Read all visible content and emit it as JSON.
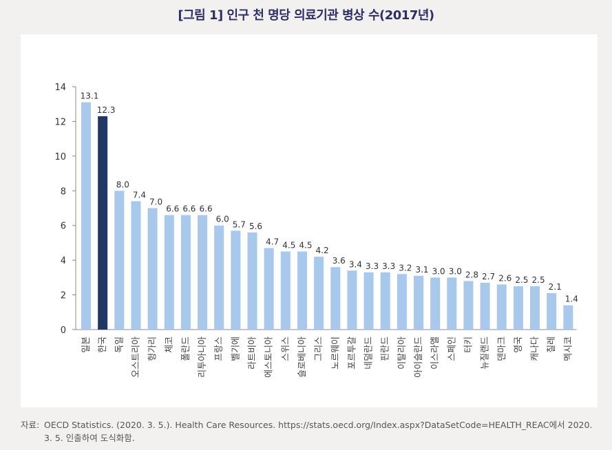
{
  "title": "[그림 1] 인구 천 명당 의료기관 병상 수(2017년)",
  "source": {
    "label": "자료:",
    "text": "OECD Statistics. (2020. 3. 5.). Health Care Resources. https://stats.oecd.org/Index.aspx?DataSetCode=HEALTH_REAC에서 2020. 3. 5. 인출하여 도식화함."
  },
  "colors": {
    "bar": "#a8c8ec",
    "highlight": "#1f3864",
    "axis": "#888888"
  },
  "chart_data": {
    "type": "bar",
    "title": "",
    "xlabel": "",
    "ylabel": "",
    "ylim": [
      0,
      14
    ],
    "yticks": [
      0,
      2,
      4,
      6,
      8,
      10,
      12,
      14
    ],
    "highlight_category": "한국",
    "categories": [
      "일본",
      "한국",
      "독일",
      "오스트리아",
      "헝가리",
      "체코",
      "폴란드",
      "리투아니아",
      "프랑스",
      "벨기에",
      "라트비아",
      "에스토니아",
      "스위스",
      "슬로베니아",
      "그리스",
      "노르웨이",
      "포르투갈",
      "네덜란드",
      "핀란드",
      "이탈리아",
      "아이슬란드",
      "이스라엘",
      "스페인",
      "터키",
      "뉴질랜드",
      "덴마크",
      "영국",
      "캐나다",
      "칠레",
      "멕시코"
    ],
    "values": [
      13.1,
      12.3,
      8.0,
      7.4,
      7.0,
      6.6,
      6.6,
      6.6,
      6.0,
      5.7,
      5.6,
      4.7,
      4.5,
      4.5,
      4.2,
      3.6,
      3.4,
      3.3,
      3.3,
      3.2,
      3.1,
      3.0,
      3.0,
      2.8,
      2.7,
      2.6,
      2.5,
      2.5,
      2.1,
      1.4
    ],
    "value_labels": [
      "13.1",
      "12.3",
      "8.0",
      "7.4",
      "7.0",
      "6.6",
      "6.6",
      "6.6",
      "6.0",
      "5.7",
      "5.6",
      "4.7",
      "4.5",
      "4.5",
      "4.2",
      "3.6",
      "3.4",
      "3.3",
      "3.3",
      "3.2",
      "3.1",
      "3.0",
      "3.0",
      "2.8",
      "2.7",
      "2.6",
      "2.5",
      "2.5",
      "2.1",
      "1.4"
    ]
  }
}
